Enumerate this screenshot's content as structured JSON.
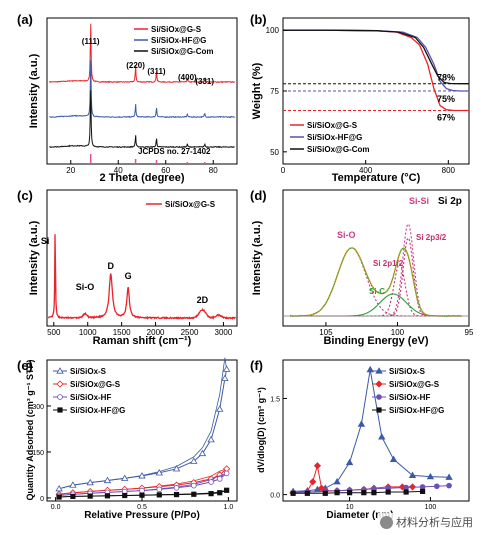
{
  "chart_data": [
    {
      "id": "a",
      "panel_label": "(a)",
      "type": "line",
      "xlabel": "2 Theta (degree)",
      "ylabel": "Intensity (a.u.)",
      "xlim": [
        10,
        90
      ],
      "xticks": [
        "20",
        "40",
        "60",
        "80"
      ],
      "legend": [
        "Si/SiOx@G-S",
        "Si/SiOx-HF@G",
        "Si/SiOx@G-Com"
      ],
      "legend_position": "top-right",
      "colors": [
        "#e8242a",
        "#3b5aa8",
        "#111111"
      ],
      "peaks": [
        {
          "label": "(111)",
          "x": 28.4
        },
        {
          "label": "(220)",
          "x": 47.3
        },
        {
          "label": "(311)",
          "x": 56.1
        },
        {
          "label": "(400)",
          "x": 69.1
        },
        {
          "label": "(331)",
          "x": 76.4
        }
      ],
      "reference": {
        "label": "JCPDS no. 27-1402",
        "x": [
          28.4,
          47.3,
          56.1,
          69.1,
          76.4
        ],
        "color": "#e0509a"
      }
    },
    {
      "id": "b",
      "panel_label": "(b)",
      "type": "line",
      "xlabel": "Temperature (°C)",
      "ylabel": "Weight (%)",
      "xlim": [
        0,
        900
      ],
      "ylim": [
        45,
        105
      ],
      "xticks": [
        "0",
        "400",
        "800"
      ],
      "yticks": [
        "50",
        "75",
        "100"
      ],
      "legend": [
        "Si/SiOx@G-S",
        "Si/SiOx-HF@G",
        "Si/SiOx@G-Com"
      ],
      "legend_position": "bottom-left",
      "series": [
        {
          "color": "#e8242a",
          "x": [
            0,
            200,
            450,
            550,
            620,
            660,
            700,
            730,
            760,
            790,
            830,
            900
          ],
          "y": [
            100,
            100,
            99.8,
            99.2,
            97,
            94,
            86,
            76,
            69,
            67.3,
            67,
            67
          ]
        },
        {
          "color": "#5b4fb0",
          "x": [
            0,
            200,
            450,
            580,
            650,
            690,
            730,
            760,
            790,
            820,
            860,
            900
          ],
          "y": [
            100,
            100,
            99.8,
            99.2,
            97,
            93,
            86,
            79,
            76,
            75.2,
            75,
            75
          ]
        },
        {
          "color": "#111111",
          "x": [
            0,
            200,
            450,
            560,
            640,
            680,
            720,
            750,
            780,
            810,
            850,
            900
          ],
          "y": [
            100,
            100,
            99.8,
            99.2,
            97,
            93,
            86,
            81,
            78.5,
            78.1,
            78,
            78
          ]
        }
      ],
      "annotations": [
        {
          "text": "78%",
          "y": 78,
          "color": "#111111"
        },
        {
          "text": "75%",
          "y": 75,
          "color": "#5b4fb0"
        },
        {
          "text": "67%",
          "y": 67,
          "color": "#e8242a"
        }
      ]
    },
    {
      "id": "c",
      "panel_label": "(c)",
      "type": "line",
      "xlabel": "Raman shift (cm⁻¹)",
      "ylabel": "Intensity (a.u.)",
      "xlim": [
        400,
        3200
      ],
      "xticks": [
        "500",
        "1000",
        "1500",
        "2000",
        "2500",
        "3000"
      ],
      "legend": [
        "Si/SiOx@G-S"
      ],
      "legend_position": "top-right",
      "color": "#e8242a",
      "peak_labels": [
        {
          "text": "Si",
          "x": 520
        },
        {
          "text": "Si-O",
          "x": 960
        },
        {
          "text": "D",
          "x": 1340
        },
        {
          "text": "G",
          "x": 1595
        },
        {
          "text": "2D",
          "x": 2690
        }
      ]
    },
    {
      "id": "d",
      "panel_label": "(d)",
      "type": "line",
      "xlabel": "Binding Energy (eV)",
      "ylabel": "Intensity (a.u.)",
      "xlim": [
        108,
        95
      ],
      "xticks": [
        "105",
        "100",
        "95"
      ],
      "title": "Si 2p",
      "components": [
        {
          "label": "Si-O",
          "center": 103.2,
          "color": "#d23a8a"
        },
        {
          "label": "Si 2p1/2",
          "center": 99.9,
          "color": "#c0306a"
        },
        {
          "label": "Si-C",
          "center": 100.3,
          "color": "#2e9a3a"
        },
        {
          "label": "Si-Si",
          "center": 99.3,
          "color": "#d23a8a"
        },
        {
          "label": "Si 2p3/2",
          "center": 99.3,
          "color": "#c0306a"
        }
      ]
    },
    {
      "id": "e",
      "panel_label": "(e)",
      "type": "line",
      "xlabel": "Relative Pressure (P/Po)",
      "ylabel": "Quantity Adsorbed (cm³ g⁻¹ STP)",
      "xlim": [
        -0.05,
        1.05
      ],
      "ylim": [
        -10,
        450
      ],
      "xticks": [
        "0.0",
        "0.5",
        "1.0"
      ],
      "yticks": [
        "0",
        "150",
        "300"
      ],
      "legend": [
        "Si/SiOx-S",
        "Si/SiOx@G-S",
        "Si/SiOx-HF",
        "Si/SiOx-HF@G"
      ],
      "legend_position": "top-left",
      "series": [
        {
          "name": "Si/SiOx-S",
          "color": "#3b5aa8",
          "x": [
            0.02,
            0.1,
            0.2,
            0.3,
            0.4,
            0.5,
            0.6,
            0.7,
            0.8,
            0.85,
            0.9,
            0.95,
            0.98,
            0.99
          ],
          "y": [
            30,
            42,
            50,
            57,
            64,
            72,
            82,
            95,
            120,
            145,
            190,
            290,
            390,
            420
          ]
        },
        {
          "name": "Si/SiOx@G-S",
          "color": "#e8242a",
          "x": [
            0.02,
            0.1,
            0.2,
            0.3,
            0.4,
            0.5,
            0.6,
            0.7,
            0.8,
            0.9,
            0.95,
            0.99
          ],
          "y": [
            12,
            17,
            21,
            25,
            28,
            32,
            37,
            42,
            50,
            62,
            75,
            95
          ]
        },
        {
          "name": "Si/SiOx-HF",
          "color": "#6a50b8",
          "x": [
            0.02,
            0.1,
            0.2,
            0.3,
            0.4,
            0.5,
            0.6,
            0.7,
            0.8,
            0.9,
            0.95,
            0.99
          ],
          "y": [
            8,
            12,
            15,
            18,
            21,
            24,
            28,
            33,
            40,
            52,
            62,
            80
          ]
        },
        {
          "name": "Si/SiOx-HF@G",
          "color": "#111111",
          "x": [
            0.02,
            0.1,
            0.2,
            0.3,
            0.4,
            0.5,
            0.6,
            0.7,
            0.8,
            0.9,
            0.95,
            0.99
          ],
          "y": [
            3,
            5,
            6,
            7,
            8,
            9,
            10,
            11,
            12,
            14,
            17,
            25
          ]
        }
      ]
    },
    {
      "id": "f",
      "panel_label": "(f)",
      "type": "line",
      "xlabel": "Diameter (nm)",
      "ylabel": "dV/dlog(D) (cm³ g⁻¹)",
      "xscale": "log",
      "xlim": [
        1.5,
        300
      ],
      "ylim": [
        -0.1,
        2.1
      ],
      "xticks": [
        "10",
        "100"
      ],
      "yticks": [
        "0.0",
        "1.5"
      ],
      "legend": [
        "Si/SiOx-S",
        "Si/SiOx@G-S",
        "Si/SiOx-HF",
        "Si/SiOx-HF@G"
      ],
      "legend_position": "top-right",
      "series": [
        {
          "name": "Si/SiOx-S",
          "color": "#3b5aa8",
          "x": [
            2,
            3,
            4,
            5,
            7,
            10,
            14,
            18,
            25,
            35,
            60,
            100,
            170
          ],
          "y": [
            0.05,
            0.06,
            0.08,
            0.1,
            0.2,
            0.5,
            1.1,
            1.95,
            0.9,
            0.55,
            0.3,
            0.28,
            0.27
          ]
        },
        {
          "name": "Si/SiOx@G-S",
          "color": "#e8242a",
          "x": [
            2,
            3,
            3.5,
            4,
            4.5,
            5,
            7,
            10,
            15,
            20,
            30,
            45,
            60
          ],
          "y": [
            0.03,
            0.05,
            0.2,
            0.45,
            0.1,
            0.06,
            0.06,
            0.07,
            0.08,
            0.1,
            0.12,
            0.12,
            0.12
          ]
        },
        {
          "name": "Si/SiOx-HF",
          "color": "#6a50b8",
          "x": [
            2,
            3,
            5,
            7,
            10,
            15,
            20,
            30,
            50,
            80,
            120,
            170
          ],
          "y": [
            0.03,
            0.04,
            0.05,
            0.06,
            0.07,
            0.08,
            0.09,
            0.1,
            0.11,
            0.12,
            0.13,
            0.14
          ]
        },
        {
          "name": "Si/SiOx-HF@G",
          "color": "#111111",
          "x": [
            2,
            3,
            5,
            7,
            10,
            15,
            20,
            30,
            50,
            80
          ],
          "y": [
            0.02,
            0.02,
            0.02,
            0.03,
            0.03,
            0.03,
            0.03,
            0.04,
            0.04,
            0.05
          ]
        }
      ]
    }
  ],
  "watermark": {
    "text": "材料分析与应用"
  }
}
